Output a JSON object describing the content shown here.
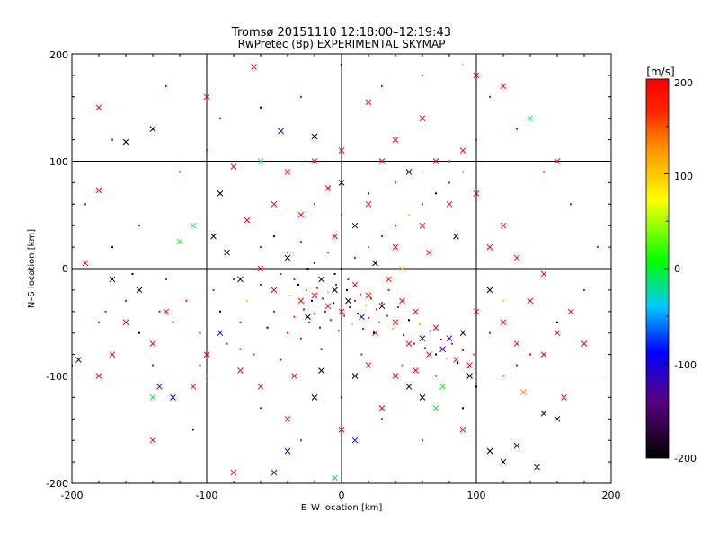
{
  "chart_data": {
    "type": "scatter",
    "title": "Tromsø 20151110 12:18:00–12:19:43",
    "subtitle": "RwPretec (8p) EXPERIMENTAL SKYMAP",
    "xlabel": "E–W location [km]",
    "ylabel": "N–S location [km]",
    "xlim": [
      -200,
      200
    ],
    "ylim": [
      -200,
      200
    ],
    "xticks": [
      "-200",
      "-100",
      "0",
      "100",
      "200"
    ],
    "yticks": [
      "-200",
      "-100",
      "0",
      "100",
      "200"
    ],
    "grid": true,
    "colorbar": {
      "label": "[m/s]",
      "range": [
        -200,
        200
      ],
      "ticks": [
        "-200",
        "-100",
        "0",
        "100",
        "200"
      ],
      "colormap": "black-purple-blue-cyan-green-yellow-orange-red"
    },
    "markers": [
      "dot (small)",
      "x (large)"
    ],
    "points": [
      [
        -180,
        150,
        200,
        1
      ],
      [
        -160,
        118,
        -200,
        1
      ],
      [
        -140,
        130,
        -200,
        1
      ],
      [
        -100,
        160,
        200,
        1
      ],
      [
        -65,
        188,
        200,
        1
      ],
      [
        -45,
        128,
        -100,
        1
      ],
      [
        -20,
        123,
        -200,
        1
      ],
      [
        -180,
        73,
        200,
        1
      ],
      [
        -190,
        5,
        200,
        1
      ],
      [
        -170,
        -10,
        -200,
        1
      ],
      [
        -150,
        -20,
        -200,
        1
      ],
      [
        -130,
        -40,
        200,
        1
      ],
      [
        -120,
        25,
        0,
        1
      ],
      [
        -110,
        40,
        0,
        1
      ],
      [
        -95,
        30,
        -200,
        1
      ],
      [
        -85,
        15,
        -200,
        1
      ],
      [
        -75,
        -10,
        -200,
        1
      ],
      [
        -60,
        0,
        200,
        1
      ],
      [
        -50,
        -20,
        200,
        1
      ],
      [
        -40,
        10,
        -200,
        1
      ],
      [
        -30,
        -30,
        200,
        1
      ],
      [
        -25,
        -45,
        -200,
        1
      ],
      [
        -20,
        -25,
        200,
        1
      ],
      [
        -15,
        -10,
        -200,
        1
      ],
      [
        -10,
        -35,
        200,
        1
      ],
      [
        -5,
        -20,
        -200,
        1
      ],
      [
        0,
        -40,
        200,
        1
      ],
      [
        5,
        -30,
        -200,
        1
      ],
      [
        10,
        -15,
        200,
        1
      ],
      [
        15,
        -45,
        -120,
        1
      ],
      [
        20,
        -25,
        200,
        1
      ],
      [
        25,
        -60,
        200,
        1
      ],
      [
        30,
        -35,
        -200,
        1
      ],
      [
        35,
        -10,
        200,
        1
      ],
      [
        40,
        -50,
        200,
        1
      ],
      [
        45,
        -30,
        200,
        1
      ],
      [
        50,
        -70,
        200,
        1
      ],
      [
        55,
        -40,
        200,
        1
      ],
      [
        60,
        -65,
        -200,
        1
      ],
      [
        65,
        -80,
        200,
        1
      ],
      [
        70,
        -55,
        200,
        1
      ],
      [
        75,
        -75,
        -120,
        1
      ],
      [
        80,
        -65,
        -100,
        1
      ],
      [
        85,
        -85,
        200,
        1
      ],
      [
        90,
        -60,
        -200,
        1
      ],
      [
        95,
        -90,
        200,
        1
      ],
      [
        100,
        -40,
        200,
        1
      ],
      [
        110,
        -20,
        -200,
        1
      ],
      [
        120,
        -50,
        200,
        1
      ],
      [
        130,
        -70,
        200,
        1
      ],
      [
        140,
        -30,
        200,
        1
      ],
      [
        160,
        -60,
        200,
        1
      ],
      [
        170,
        -40,
        200,
        1
      ],
      [
        150,
        -80,
        200,
        1
      ],
      [
        -110,
        -110,
        200,
        1
      ],
      [
        -125,
        -120,
        -100,
        1
      ],
      [
        -180,
        -100,
        200,
        1
      ],
      [
        -140,
        -70,
        200,
        1
      ],
      [
        -60,
        -110,
        200,
        1
      ],
      [
        -40,
        -140,
        200,
        1
      ],
      [
        -20,
        -120,
        -200,
        1
      ],
      [
        0,
        -150,
        200,
        1
      ],
      [
        10,
        -160,
        -100,
        1
      ],
      [
        30,
        -130,
        200,
        1
      ],
      [
        50,
        -110,
        -200,
        1
      ],
      [
        60,
        -120,
        -200,
        1
      ],
      [
        70,
        -130,
        0,
        1
      ],
      [
        90,
        -150,
        200,
        1
      ],
      [
        110,
        -170,
        -200,
        1
      ],
      [
        120,
        -180,
        -200,
        1
      ],
      [
        130,
        -165,
        -200,
        1
      ],
      [
        150,
        -135,
        -200,
        1
      ],
      [
        -40,
        -170,
        -100,
        1
      ],
      [
        -50,
        -190,
        -100,
        1
      ],
      [
        -5,
        -195,
        0,
        1
      ],
      [
        20,
        155,
        200,
        1
      ],
      [
        40,
        120,
        200,
        1
      ],
      [
        60,
        140,
        200,
        1
      ],
      [
        70,
        100,
        200,
        1
      ],
      [
        90,
        110,
        200,
        1
      ],
      [
        100,
        180,
        200,
        1
      ],
      [
        120,
        170,
        200,
        1
      ],
      [
        140,
        140,
        0,
        1
      ],
      [
        160,
        100,
        200,
        1
      ],
      [
        80,
        60,
        200,
        1
      ],
      [
        100,
        70,
        200,
        1
      ],
      [
        120,
        40,
        200,
        1
      ],
      [
        110,
        20,
        200,
        1
      ],
      [
        130,
        10,
        200,
        1
      ],
      [
        150,
        -5,
        200,
        1
      ],
      [
        60,
        40,
        200,
        1
      ],
      [
        40,
        20,
        200,
        1
      ],
      [
        20,
        60,
        200,
        1
      ],
      [
        0,
        80,
        -200,
        1
      ],
      [
        -10,
        75,
        200,
        1
      ],
      [
        -30,
        50,
        200,
        1
      ],
      [
        -50,
        60,
        200,
        1
      ],
      [
        -70,
        45,
        200,
        1
      ],
      [
        -90,
        70,
        -200,
        1
      ],
      [
        -80,
        95,
        200,
        1
      ],
      [
        -60,
        100,
        0,
        1
      ],
      [
        -40,
        90,
        200,
        1
      ],
      [
        -20,
        100,
        200,
        1
      ],
      [
        0,
        110,
        200,
        1
      ],
      [
        30,
        100,
        200,
        1
      ],
      [
        50,
        90,
        -200,
        1
      ],
      [
        10,
        40,
        -200,
        1
      ],
      [
        -5,
        30,
        200,
        1
      ],
      [
        25,
        5,
        -200,
        1
      ],
      [
        45,
        0,
        100,
        1
      ],
      [
        65,
        15,
        200,
        1
      ],
      [
        85,
        30,
        -200,
        1
      ],
      [
        -90,
        -60,
        -100,
        1
      ],
      [
        -100,
        -80,
        200,
        1
      ],
      [
        -160,
        -50,
        200,
        1
      ],
      [
        -170,
        -80,
        200,
        1
      ],
      [
        -195,
        -85,
        -200,
        1
      ],
      [
        145,
        -185,
        -200,
        1
      ],
      [
        165,
        -120,
        200,
        1
      ],
      [
        180,
        -70,
        200,
        1
      ],
      [
        -140,
        -120,
        0,
        1
      ],
      [
        -135,
        -110,
        -120,
        1
      ],
      [
        -75,
        -95,
        200,
        1
      ],
      [
        -35,
        -100,
        200,
        1
      ],
      [
        -15,
        -95,
        -200,
        1
      ],
      [
        10,
        -100,
        -200,
        1
      ],
      [
        20,
        -90,
        200,
        1
      ],
      [
        40,
        -100,
        200,
        1
      ],
      [
        55,
        -95,
        200,
        1
      ],
      [
        75,
        -110,
        0,
        1
      ],
      [
        95,
        -100,
        -200,
        1
      ],
      [
        -80,
        -190,
        200,
        1
      ],
      [
        -140,
        -160,
        200,
        1
      ],
      [
        160,
        -140,
        -200,
        1
      ],
      [
        135,
        -115,
        140,
        1
      ],
      [
        -200,
        -90,
        -200,
        0
      ],
      [
        -180,
        -50,
        200,
        0
      ],
      [
        -160,
        -30,
        200,
        0
      ],
      [
        -150,
        -60,
        -200,
        0
      ],
      [
        -140,
        -90,
        200,
        0
      ],
      [
        -130,
        -10,
        200,
        0
      ],
      [
        -125,
        -50,
        -100,
        0
      ],
      [
        -115,
        -30,
        200,
        0
      ],
      [
        -105,
        -60,
        200,
        0
      ],
      [
        -95,
        -20,
        200,
        0
      ],
      [
        -90,
        -40,
        -200,
        0
      ],
      [
        -85,
        -70,
        200,
        0
      ],
      [
        -80,
        -10,
        200,
        0
      ],
      [
        -75,
        -50,
        200,
        0
      ],
      [
        -70,
        -30,
        100,
        0
      ],
      [
        -65,
        -80,
        200,
        0
      ],
      [
        -60,
        -15,
        200,
        0
      ],
      [
        -55,
        -55,
        -200,
        0
      ],
      [
        -50,
        -40,
        200,
        0
      ],
      [
        -45,
        -5,
        200,
        0
      ],
      [
        -40,
        -60,
        200,
        0
      ],
      [
        -38,
        -25,
        50,
        0
      ],
      [
        -35,
        -45,
        200,
        0
      ],
      [
        -32,
        -15,
        -200,
        0
      ],
      [
        -30,
        -65,
        200,
        0
      ],
      [
        -28,
        -38,
        200,
        0
      ],
      [
        -26,
        -20,
        150,
        0
      ],
      [
        -24,
        -50,
        200,
        0
      ],
      [
        -22,
        -30,
        -200,
        0
      ],
      [
        -20,
        -42,
        200,
        0
      ],
      [
        -18,
        -18,
        200,
        0
      ],
      [
        -16,
        -55,
        -150,
        0
      ],
      [
        -14,
        -28,
        200,
        0
      ],
      [
        -12,
        -40,
        200,
        0
      ],
      [
        -10,
        -22,
        100,
        0
      ],
      [
        -8,
        -48,
        200,
        0
      ],
      [
        -6,
        -32,
        -200,
        0
      ],
      [
        -4,
        -15,
        200,
        0
      ],
      [
        -2,
        -58,
        200,
        0
      ],
      [
        0,
        -26,
        150,
        0
      ],
      [
        2,
        -44,
        200,
        0
      ],
      [
        4,
        -20,
        -200,
        0
      ],
      [
        6,
        -36,
        200,
        0
      ],
      [
        8,
        -52,
        100,
        0
      ],
      [
        10,
        -30,
        200,
        0
      ],
      [
        12,
        -42,
        -200,
        0
      ],
      [
        14,
        -24,
        200,
        0
      ],
      [
        16,
        -56,
        200,
        0
      ],
      [
        18,
        -34,
        120,
        0
      ],
      [
        20,
        -46,
        200,
        0
      ],
      [
        22,
        -28,
        200,
        0
      ],
      [
        24,
        -60,
        -200,
        0
      ],
      [
        26,
        -38,
        200,
        0
      ],
      [
        28,
        -50,
        150,
        0
      ],
      [
        30,
        -32,
        200,
        0
      ],
      [
        34,
        -44,
        200,
        0
      ],
      [
        38,
        -56,
        100,
        0
      ],
      [
        42,
        -36,
        200,
        0
      ],
      [
        46,
        -62,
        200,
        0
      ],
      [
        50,
        -48,
        -200,
        0
      ],
      [
        54,
        -70,
        200,
        0
      ],
      [
        58,
        -52,
        120,
        0
      ],
      [
        62,
        -74,
        200,
        0
      ],
      [
        66,
        -58,
        200,
        0
      ],
      [
        70,
        -80,
        -200,
        0
      ],
      [
        74,
        -66,
        200,
        0
      ],
      [
        78,
        -84,
        100,
        0
      ],
      [
        82,
        -70,
        200,
        0
      ],
      [
        86,
        -88,
        -200,
        0
      ],
      [
        90,
        -76,
        200,
        0
      ],
      [
        94,
        -92,
        200,
        0
      ],
      [
        98,
        -80,
        150,
        0
      ],
      [
        -60,
        20,
        200,
        0
      ],
      [
        -50,
        30,
        -200,
        0
      ],
      [
        -40,
        15,
        200,
        0
      ],
      [
        -30,
        25,
        200,
        0
      ],
      [
        -20,
        5,
        -200,
        0
      ],
      [
        -10,
        15,
        200,
        0
      ],
      [
        0,
        0,
        -200,
        0
      ],
      [
        10,
        10,
        200,
        0
      ],
      [
        20,
        20,
        150,
        0
      ],
      [
        30,
        30,
        200,
        0
      ],
      [
        40,
        40,
        200,
        0
      ],
      [
        50,
        50,
        100,
        0
      ],
      [
        60,
        60,
        200,
        0
      ],
      [
        70,
        70,
        -200,
        0
      ],
      [
        80,
        80,
        200,
        0
      ],
      [
        90,
        90,
        150,
        0
      ],
      [
        -20,
        60,
        200,
        0
      ],
      [
        0,
        50,
        200,
        0
      ],
      [
        20,
        70,
        -200,
        0
      ],
      [
        40,
        80,
        200,
        0
      ],
      [
        60,
        90,
        100,
        0
      ],
      [
        80,
        100,
        200,
        0
      ],
      [
        100,
        120,
        200,
        0
      ],
      [
        -100,
        110,
        200,
        0
      ],
      [
        -120,
        90,
        200,
        0
      ],
      [
        -150,
        40,
        200,
        0
      ],
      [
        -170,
        20,
        -200,
        0
      ],
      [
        -190,
        60,
        200,
        0
      ],
      [
        -110,
        -150,
        -200,
        0
      ],
      [
        -60,
        -130,
        200,
        0
      ],
      [
        -30,
        -160,
        200,
        0
      ],
      [
        0,
        -120,
        -200,
        0
      ],
      [
        30,
        -140,
        200,
        0
      ],
      [
        60,
        -160,
        200,
        0
      ],
      [
        90,
        -130,
        -200,
        0
      ],
      [
        120,
        -100,
        200,
        0
      ],
      [
        140,
        -80,
        200,
        0
      ],
      [
        160,
        -50,
        -200,
        0
      ],
      [
        180,
        -20,
        200,
        0
      ],
      [
        190,
        20,
        200,
        0
      ],
      [
        170,
        60,
        200,
        0
      ],
      [
        150,
        90,
        200,
        0
      ],
      [
        130,
        130,
        200,
        0
      ],
      [
        110,
        160,
        200,
        0
      ],
      [
        90,
        190,
        100,
        0
      ],
      [
        60,
        180,
        200,
        0
      ],
      [
        30,
        170,
        200,
        0
      ],
      [
        0,
        190,
        -200,
        0
      ],
      [
        -30,
        160,
        200,
        0
      ],
      [
        -60,
        150,
        -200,
        0
      ],
      [
        -90,
        140,
        200,
        0
      ],
      [
        -130,
        170,
        200,
        0
      ],
      [
        -170,
        120,
        200,
        0
      ],
      [
        110,
        -60,
        200,
        0
      ],
      [
        120,
        -30,
        100,
        0
      ],
      [
        130,
        -90,
        200,
        0
      ],
      [
        100,
        -110,
        -200,
        0
      ],
      [
        70,
        -100,
        200,
        0
      ],
      [
        45,
        -90,
        150,
        0
      ],
      [
        15,
        -80,
        200,
        0
      ],
      [
        -15,
        -75,
        -200,
        0
      ],
      [
        -45,
        -85,
        200,
        0
      ],
      [
        -75,
        -75,
        200,
        0
      ],
      [
        -105,
        -90,
        200,
        0
      ],
      [
        -135,
        -40,
        200,
        0
      ],
      [
        -155,
        -5,
        -200,
        0
      ],
      [
        -175,
        -40,
        200,
        0
      ],
      [
        -5,
        -5,
        -200,
        0
      ],
      [
        5,
        -10,
        200,
        0
      ],
      [
        15,
        0,
        150,
        0
      ],
      [
        -25,
        0,
        -200,
        0
      ],
      [
        -35,
        -10,
        200,
        0
      ],
      [
        35,
        -20,
        200,
        0
      ]
    ]
  }
}
